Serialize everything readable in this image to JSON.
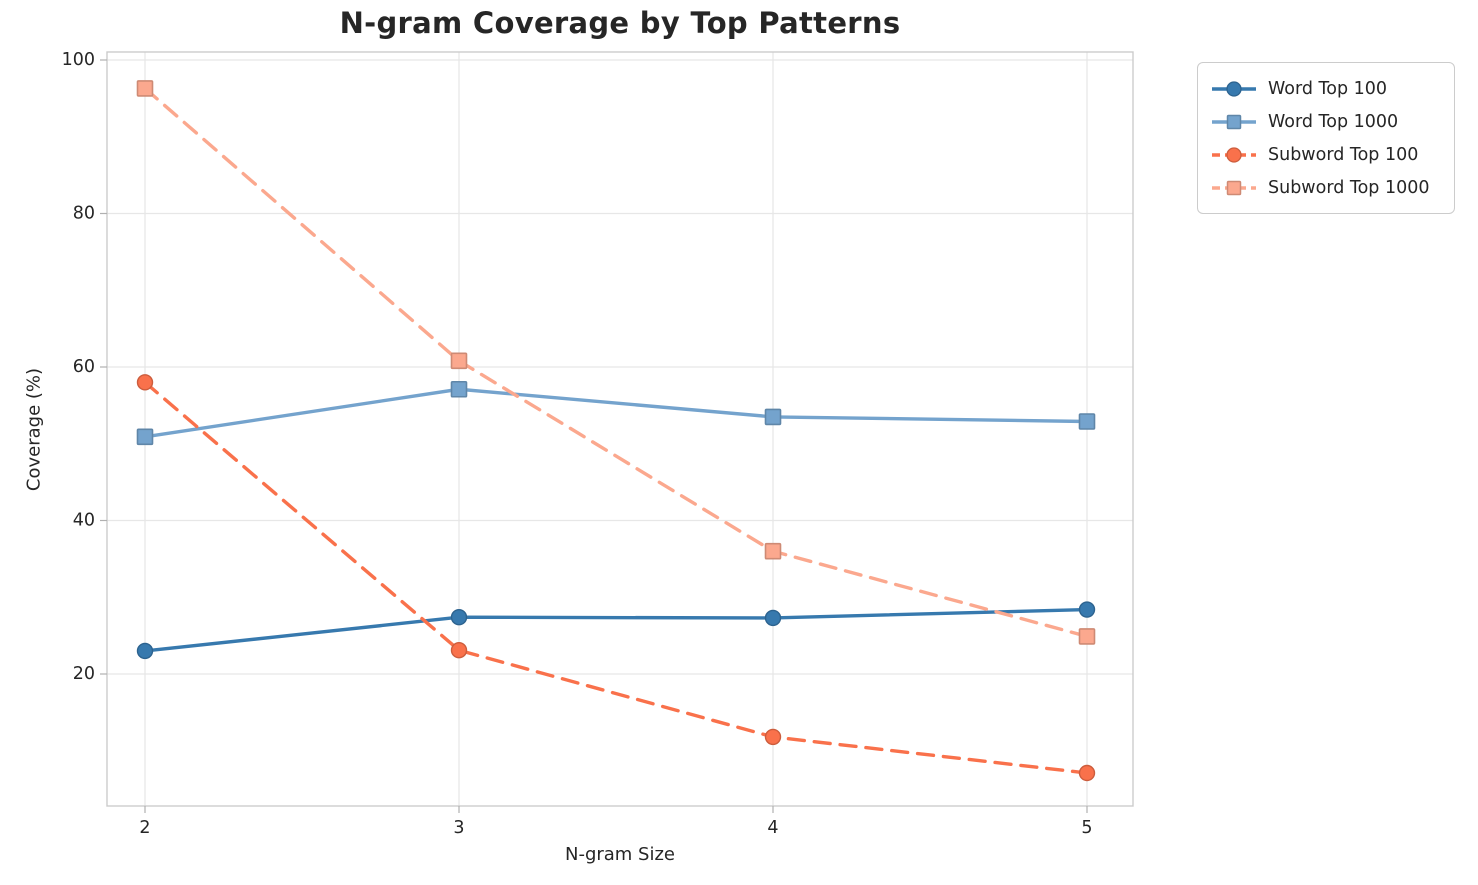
{
  "figure": {
    "background": "#ffffff",
    "grid_color": "#e7e7e7",
    "spine_color": "#cccccc",
    "tick_color": "#b0b0b0",
    "text_color": "#262626"
  },
  "chart_data": {
    "type": "line",
    "title": "N-gram Coverage by Top Patterns",
    "xlabel": "N-gram Size",
    "ylabel": "Coverage (%)",
    "x": [
      2,
      3,
      4,
      5
    ],
    "xtick_labels": [
      "2",
      "3",
      "4",
      "5"
    ],
    "ytick_values": [
      20,
      40,
      60,
      80,
      100
    ],
    "ytick_labels": [
      "20",
      "40",
      "60",
      "80",
      "100"
    ],
    "xlim": [
      1.85,
      5.15
    ],
    "ylim": [
      2.5,
      101
    ],
    "grid": true,
    "legend_position": "outside upper right",
    "series": [
      {
        "name": "Word Top 100",
        "values": [
          23.0,
          27.4,
          27.3,
          28.4
        ],
        "color": "#3779ae",
        "line_style": "solid",
        "marker": "circle"
      },
      {
        "name": "Word Top 1000",
        "values": [
          50.9,
          57.1,
          53.5,
          52.9
        ],
        "color": "#74a3cd",
        "line_style": "solid",
        "marker": "square"
      },
      {
        "name": "Subword Top 100",
        "values": [
          58.0,
          23.1,
          11.8,
          7.1
        ],
        "color": "#f9714b",
        "line_style": "dashed",
        "marker": "circle"
      },
      {
        "name": "Subword Top 1000",
        "values": [
          96.3,
          60.8,
          36.0,
          24.9
        ],
        "color": "#fba88e",
        "line_style": "dashed",
        "marker": "square"
      }
    ]
  }
}
